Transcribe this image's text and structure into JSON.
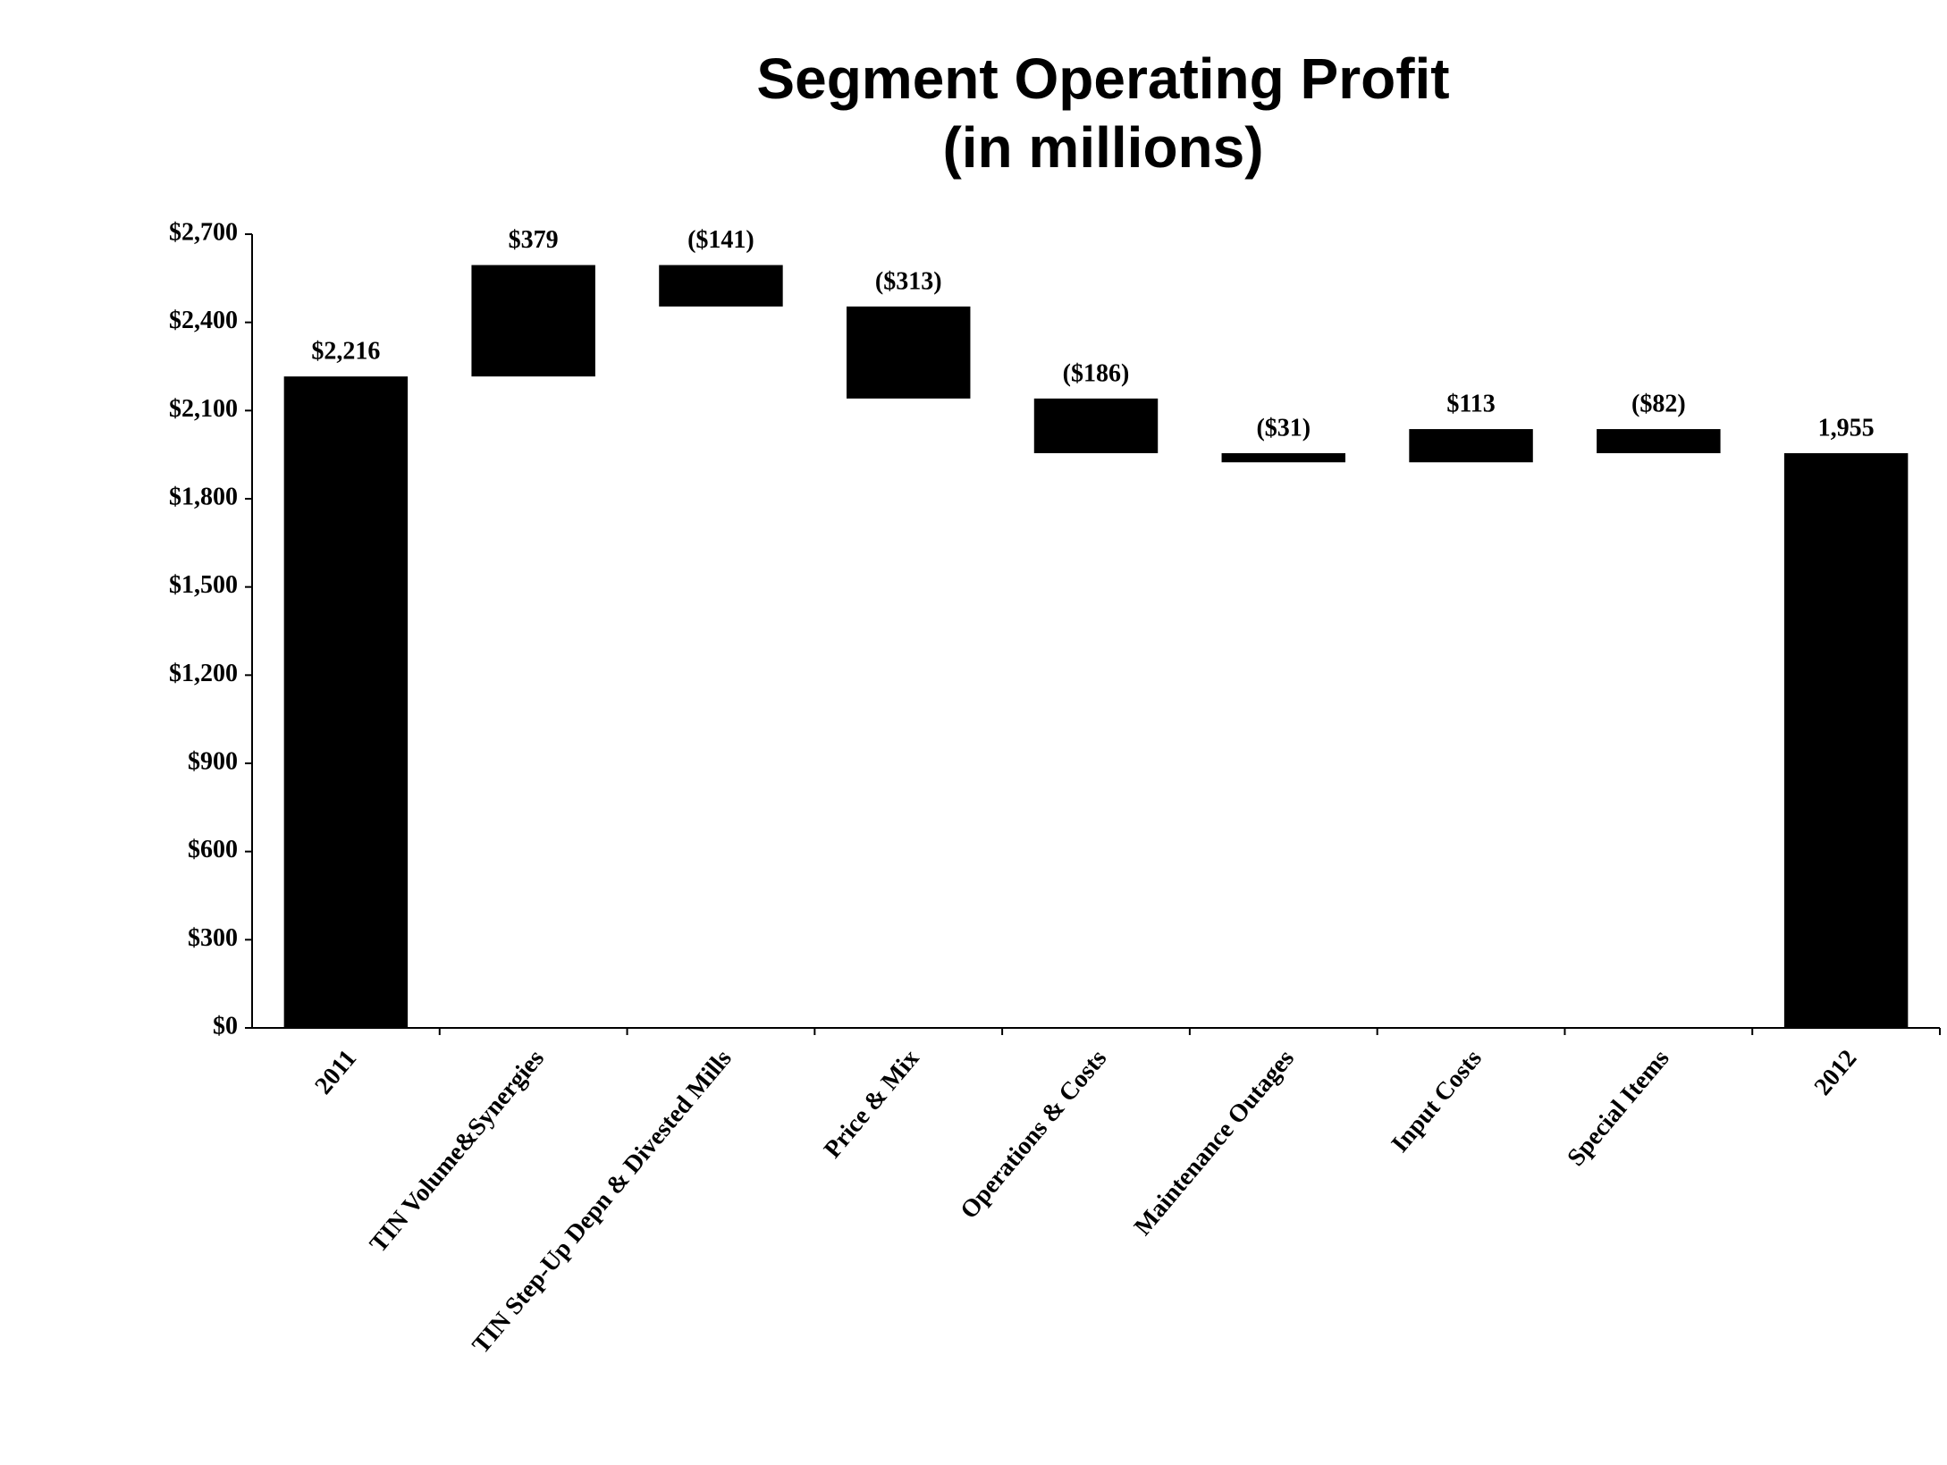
{
  "chart_data": {
    "type": "waterfall",
    "title": "Segment Operating Profit",
    "subtitle": "(in millions)",
    "categories": [
      "2011",
      "TIN Volume&Synergies",
      "TIN Step-Up Depn & Divested Mills",
      "Price & Mix",
      "Operations & Costs",
      "Maintenance Outages",
      "Input Costs",
      "Special Items",
      "2012"
    ],
    "values": [
      2216,
      379,
      -141,
      -313,
      -186,
      -31,
      113,
      -82,
      1955
    ],
    "value_labels": [
      "$2,216",
      "$379",
      "($141)",
      "($313)",
      "($186)",
      "($31)",
      "$113",
      "($82)",
      "1,955"
    ],
    "color": "#000000",
    "ylim": [
      0,
      2700
    ],
    "yticks": [
      {
        "value": 0,
        "label": "$0"
      },
      {
        "value": 300,
        "label": "$300"
      },
      {
        "value": 600,
        "label": "$600"
      },
      {
        "value": 900,
        "label": "$900"
      },
      {
        "value": 1200,
        "label": "$1,200"
      },
      {
        "value": 1500,
        "label": "$1,500"
      },
      {
        "value": 1800,
        "label": "$1,800"
      },
      {
        "value": 2100,
        "label": "$2,100"
      },
      {
        "value": 2400,
        "label": "$2,400"
      },
      {
        "value": 2700,
        "label": "$2,700"
      }
    ],
    "grid": false
  }
}
